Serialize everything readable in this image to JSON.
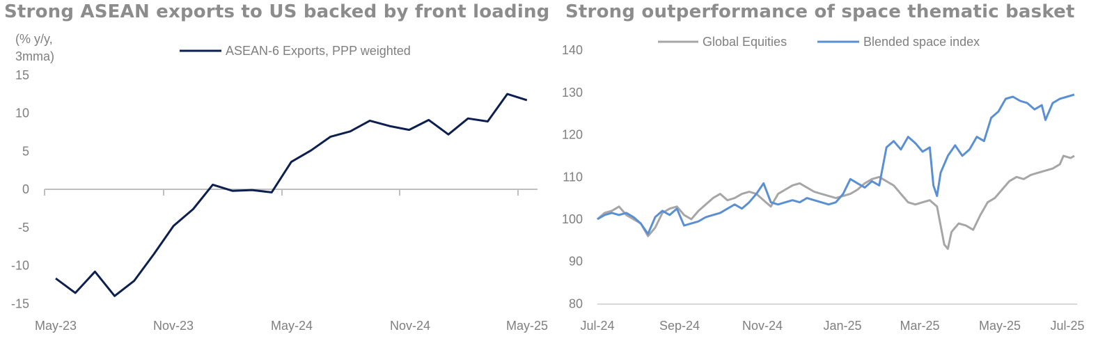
{
  "chart_data": [
    {
      "type": "line",
      "title": "Strong ASEAN exports to US backed by front loading",
      "ylabel": "(% y/y, 3mma)",
      "xlabel": "",
      "x_tick_labels": [
        "May-23",
        "Nov-23",
        "May-24",
        "Nov-24",
        "May-25"
      ],
      "y_ticks": [
        15,
        10,
        5,
        0,
        -5,
        -10,
        -15
      ],
      "ylim": [
        -15,
        15
      ],
      "legend_position": "top-center",
      "grid": false,
      "x": [
        "May-23",
        "Jun-23",
        "Jul-23",
        "Aug-23",
        "Sep-23",
        "Oct-23",
        "Nov-23",
        "Dec-23",
        "Jan-24",
        "Feb-24",
        "Mar-24",
        "Apr-24",
        "May-24",
        "Jun-24",
        "Jul-24",
        "Aug-24",
        "Sep-24",
        "Oct-24",
        "Nov-24",
        "Dec-24",
        "Jan-25",
        "Feb-25",
        "Mar-25",
        "Apr-25",
        "May-25"
      ],
      "series": [
        {
          "name": "ASEAN-6 Exports, PPP weighted",
          "color": "#0d1f4f",
          "values": [
            -11.7,
            -13.6,
            -10.8,
            -14.0,
            -12.0,
            -8.5,
            -4.8,
            -2.6,
            0.6,
            -0.2,
            -0.1,
            -0.4,
            3.6,
            5.1,
            6.9,
            7.6,
            9.0,
            8.3,
            7.8,
            9.1,
            7.2,
            9.3,
            8.9,
            12.5,
            11.7
          ]
        }
      ]
    },
    {
      "type": "line",
      "title": "Strong outperformance of space thematic basket",
      "xlabel": "",
      "ylabel": "",
      "x_tick_labels": [
        "Jul-24",
        "Sep-24",
        "Nov-24",
        "Jan-25",
        "Mar-25",
        "May-25",
        "Jul-25"
      ],
      "y_ticks": [
        140,
        130,
        120,
        110,
        100,
        90,
        80
      ],
      "ylim": [
        80,
        140
      ],
      "legend_position": "top-center",
      "grid": false,
      "x": [
        "Jul-24",
        "Aug-24",
        "Sep-24",
        "Oct-24",
        "Nov-24",
        "Dec-24",
        "Jan-25",
        "Feb-25",
        "Mar-25",
        "Apr-25",
        "May-25",
        "Jun-25",
        "Jul-25"
      ],
      "series": [
        {
          "name": "Global Equities",
          "color": "#a6a6a6",
          "values": [
            [
              0,
              100
            ],
            [
              4,
              101.5
            ],
            [
              8,
              102
            ],
            [
              12,
              103
            ],
            [
              16,
              101
            ],
            [
              20,
              100
            ],
            [
              24,
              99
            ],
            [
              28,
              96
            ],
            [
              32,
              98
            ],
            [
              36,
              101.5
            ],
            [
              40,
              102.5
            ],
            [
              44,
              103
            ],
            [
              48,
              101
            ],
            [
              52,
              100
            ],
            [
              56,
              102
            ],
            [
              60,
              103.5
            ],
            [
              64,
              105
            ],
            [
              68,
              106
            ],
            [
              72,
              104.5
            ],
            [
              76,
              105
            ],
            [
              80,
              106
            ],
            [
              84,
              106.5
            ],
            [
              88,
              106
            ],
            [
              92,
              104.5
            ],
            [
              96,
              103
            ],
            [
              100,
              106
            ],
            [
              104,
              107
            ],
            [
              108,
              108
            ],
            [
              112,
              108.5
            ],
            [
              116,
              107.5
            ],
            [
              120,
              106.5
            ],
            [
              124,
              106
            ],
            [
              128,
              105.5
            ],
            [
              132,
              105
            ],
            [
              136,
              105.5
            ],
            [
              140,
              106
            ],
            [
              144,
              107
            ],
            [
              148,
              108.5
            ],
            [
              152,
              109.5
            ],
            [
              156,
              110
            ],
            [
              160,
              109
            ],
            [
              164,
              108
            ],
            [
              168,
              106
            ],
            [
              172,
              104
            ],
            [
              176,
              103.5
            ],
            [
              180,
              104
            ],
            [
              184,
              104.5
            ],
            [
              188,
              103
            ],
            [
              192,
              94
            ],
            [
              194,
              93
            ],
            [
              196,
              97
            ],
            [
              200,
              99
            ],
            [
              204,
              98.5
            ],
            [
              208,
              97.5
            ],
            [
              212,
              101
            ],
            [
              216,
              104
            ],
            [
              220,
              105
            ],
            [
              224,
              107
            ],
            [
              228,
              109
            ],
            [
              232,
              110
            ],
            [
              236,
              109.5
            ],
            [
              240,
              110.5
            ],
            [
              244,
              111
            ],
            [
              248,
              111.5
            ],
            [
              252,
              112
            ],
            [
              256,
              113
            ],
            [
              258,
              115
            ],
            [
              262,
              114.5
            ],
            [
              264,
              115
            ]
          ]
        },
        {
          "name": "Blended space index",
          "color": "#5b8fd4",
          "values": [
            [
              0,
              100
            ],
            [
              4,
              101
            ],
            [
              8,
              101.5
            ],
            [
              12,
              101
            ],
            [
              16,
              101.5
            ],
            [
              20,
              100.5
            ],
            [
              24,
              99
            ],
            [
              28,
              96.5
            ],
            [
              32,
              100.5
            ],
            [
              36,
              102
            ],
            [
              40,
              101
            ],
            [
              44,
              102.5
            ],
            [
              48,
              98.5
            ],
            [
              52,
              99
            ],
            [
              56,
              99.5
            ],
            [
              60,
              100.5
            ],
            [
              64,
              101
            ],
            [
              68,
              101.5
            ],
            [
              72,
              102.5
            ],
            [
              76,
              103.5
            ],
            [
              80,
              102.5
            ],
            [
              84,
              104
            ],
            [
              88,
              106
            ],
            [
              92,
              108.5
            ],
            [
              96,
              104
            ],
            [
              100,
              103.5
            ],
            [
              104,
              104
            ],
            [
              108,
              104.5
            ],
            [
              112,
              104
            ],
            [
              116,
              105
            ],
            [
              120,
              104.5
            ],
            [
              124,
              104
            ],
            [
              128,
              103.5
            ],
            [
              132,
              104
            ],
            [
              136,
              106
            ],
            [
              140,
              109.5
            ],
            [
              144,
              108.5
            ],
            [
              148,
              107.5
            ],
            [
              152,
              109
            ],
            [
              156,
              108
            ],
            [
              160,
              117
            ],
            [
              164,
              118.5
            ],
            [
              168,
              116.5
            ],
            [
              172,
              119.5
            ],
            [
              176,
              118
            ],
            [
              180,
              116
            ],
            [
              184,
              117
            ],
            [
              186,
              108
            ],
            [
              188,
              105.5
            ],
            [
              190,
              111
            ],
            [
              194,
              115
            ],
            [
              198,
              117.5
            ],
            [
              202,
              115
            ],
            [
              206,
              116.5
            ],
            [
              210,
              119.5
            ],
            [
              214,
              118.5
            ],
            [
              218,
              124
            ],
            [
              222,
              125.5
            ],
            [
              226,
              128.5
            ],
            [
              230,
              129
            ],
            [
              234,
              128
            ],
            [
              238,
              127.5
            ],
            [
              242,
              126
            ],
            [
              246,
              127
            ],
            [
              248,
              123.5
            ],
            [
              252,
              127.5
            ],
            [
              256,
              128.5
            ],
            [
              260,
              129
            ],
            [
              264,
              129.5
            ]
          ]
        }
      ]
    }
  ],
  "page": {
    "left": {
      "title": "Strong ASEAN exports to US backed by front loading",
      "unit": "(% y/y, 3mma)",
      "legend": "ASEAN-6 Exports, PPP weighted"
    },
    "right": {
      "title": "Strong outperformance of space thematic basket",
      "legend_1": "Global Equities",
      "legend_2": "Blended space index"
    }
  }
}
